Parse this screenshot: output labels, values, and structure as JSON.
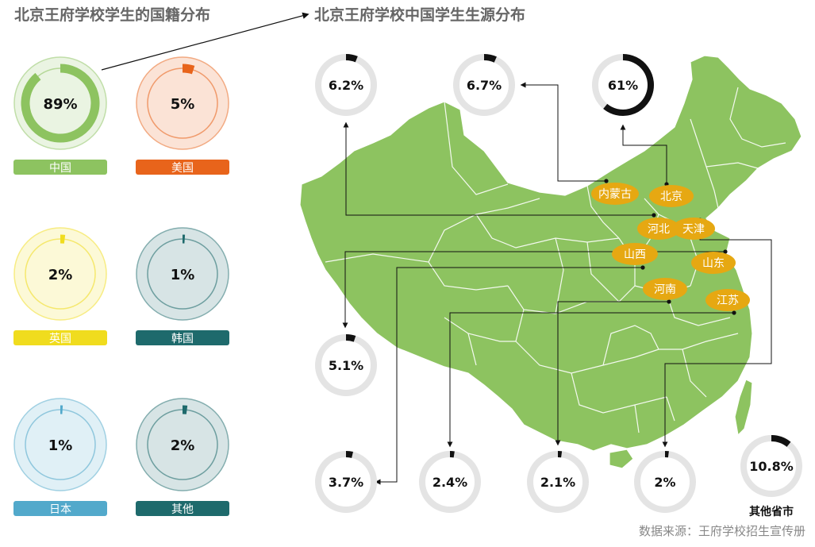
{
  "titles": {
    "left": "北京王府学校学生的国籍分布",
    "right": "北京王府学校中国学生生源分布"
  },
  "source": "数据来源：王府学校招生宣传册",
  "chart_data": [
    {
      "type": "pie",
      "title": "北京王府学校学生的国籍分布",
      "slices": [
        {
          "label": "中国",
          "value": 89,
          "display": "89%",
          "color": "#8dc360"
        },
        {
          "label": "美国",
          "value": 5,
          "display": "5%",
          "color": "#e8641b"
        },
        {
          "label": "英国",
          "value": 2,
          "display": "2%",
          "color": "#f0dc1e"
        },
        {
          "label": "韩国",
          "value": 1,
          "display": "1%",
          "color": "#1e6a6c"
        },
        {
          "label": "日本",
          "value": 1,
          "display": "1%",
          "color": "#52a9cb"
        },
        {
          "label": "其他",
          "value": 2,
          "display": "2%",
          "color": "#1e6a6c"
        }
      ]
    },
    {
      "type": "pie",
      "title": "北京王府学校中国学生生源分布",
      "slices": [
        {
          "label": "北京",
          "value": 61,
          "display": "61%"
        },
        {
          "label": "内蒙古",
          "value": 6.7,
          "display": "6.7%"
        },
        {
          "label": "河北",
          "value": 6.2,
          "display": "6.2%"
        },
        {
          "label": "天津",
          "value": 5.1,
          "display": "5.1%"
        },
        {
          "label": "山西",
          "value": 3.7,
          "display": "3.7%"
        },
        {
          "label": "山东",
          "value": 2.4,
          "display": "2.4%"
        },
        {
          "label": "河南",
          "value": 2.1,
          "display": "2.1%"
        },
        {
          "label": "江苏",
          "value": 2,
          "display": "2%"
        },
        {
          "label": "其他省市",
          "value": 10.8,
          "display": "10.8%"
        }
      ],
      "other_label": "其他省市",
      "map_color": "#8dc360",
      "label_color": "#e6a812"
    }
  ]
}
